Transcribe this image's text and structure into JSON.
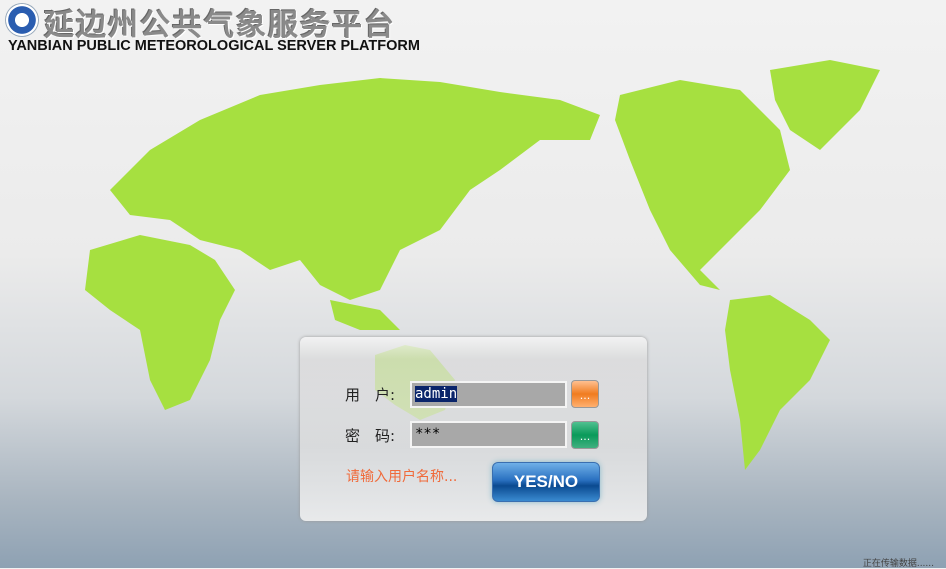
{
  "header": {
    "title_cn": "延边州公共气象服务平台",
    "title_en": "YANBIAN PUBLIC METEOROLOGICAL SERVER PLATFORM"
  },
  "login": {
    "username_label": "用　户:",
    "username_value": "admin",
    "password_label": "密　码:",
    "password_value": "***",
    "username_button": "...",
    "password_button": "...",
    "hint": "请输入用户名称...",
    "submit_label": "YES/NO"
  },
  "status": "正在传输数据......",
  "colors": {
    "map_top": "#1e6fb8",
    "map_bottom": "#8fd83a",
    "hint": "#f06a3a",
    "button": "#1f5fa8"
  }
}
